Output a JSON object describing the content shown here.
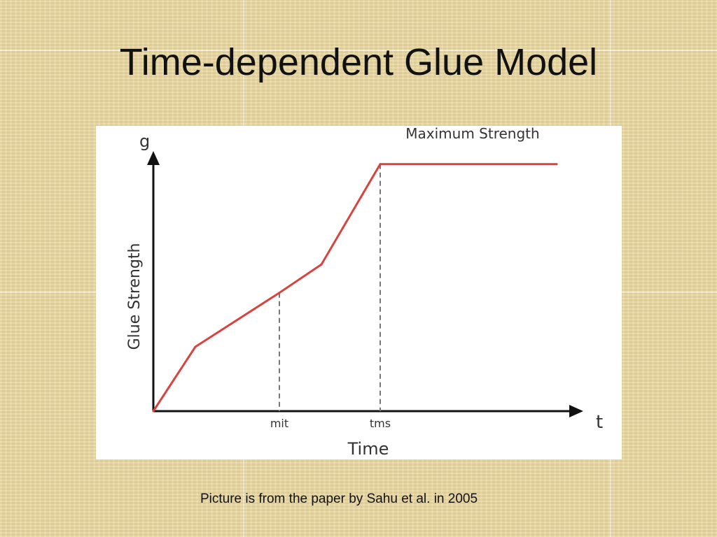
{
  "slide": {
    "title": "Time-dependent Glue Model",
    "caption": "Picture is from the paper by Sahu et al. in 2005"
  },
  "chart_data": {
    "type": "line",
    "y_axis_symbol": "g",
    "x_axis_symbol": "t",
    "ylabel": "Glue Strength",
    "xlabel": "Time",
    "x_ticks": [
      {
        "label": "mit",
        "x": 3
      },
      {
        "label": "tms",
        "x": 5.4
      }
    ],
    "xlim": [
      0,
      10
    ],
    "ylim": [
      0,
      10
    ],
    "series": [
      {
        "color": "#d9433f",
        "points": [
          {
            "x": 0,
            "y": 0
          },
          {
            "x": 1,
            "y": 2.5
          },
          {
            "x": 3,
            "y": 4.6
          },
          {
            "x": 4,
            "y": 5.7
          },
          {
            "x": 5.4,
            "y": 9.6
          },
          {
            "x": 9.6,
            "y": 9.6
          }
        ]
      }
    ],
    "guides": [
      {
        "x": 3,
        "y": 4.6
      },
      {
        "x": 5.4,
        "y": 9.6
      }
    ],
    "annotations": [
      {
        "text": "Maximum Strength",
        "x": 7.6,
        "y": 10.6
      }
    ],
    "grid": false
  }
}
